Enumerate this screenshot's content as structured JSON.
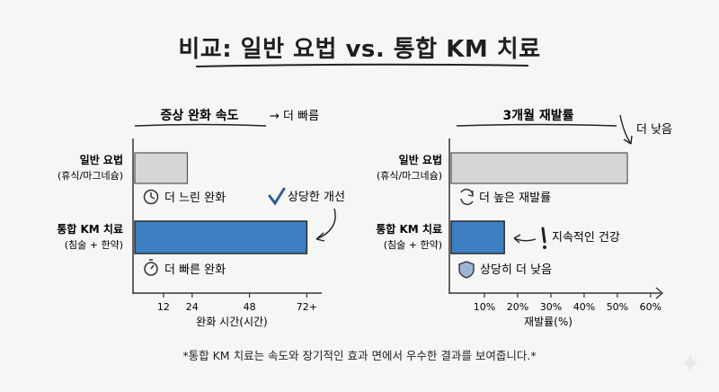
{
  "title": "비교: 일반 요법 vs. 통합 KM 치료",
  "footnote": "*통합 KM 치료는 속도와 장기적인 효과 면에서 우수한 결과를 보여줍니다.*",
  "chart_data": [
    {
      "type": "bar",
      "orientation": "horizontal",
      "title": "증상 완화 속도",
      "title_note": "→ 더 빠름",
      "categories": [
        [
          "일반 요법",
          "(휴식/마그네슘)"
        ],
        [
          "통합 KM 치료",
          "(침술 + 한약)"
        ]
      ],
      "values": [
        22,
        72
      ],
      "xlabel": "완화 시간(시간)",
      "ylabel": "",
      "xticks": [
        "12",
        "24",
        "48",
        "72+"
      ],
      "tick_values": [
        12,
        24,
        48,
        72
      ],
      "xlim": [
        0,
        76
      ],
      "annotations": [
        "더 느린 완화",
        "더 빠른 완화",
        "상당한 개선"
      ],
      "colors": [
        "#d6d6d4",
        "#3d7fc1"
      ]
    },
    {
      "type": "bar",
      "orientation": "horizontal",
      "title": "3개월 재발률",
      "title_note": "더 낮음",
      "categories": [
        [
          "일반 요법",
          "(휴식/마그네슘)"
        ],
        [
          "통합 KM 치료",
          "(침술 + 한약)"
        ]
      ],
      "values": [
        53,
        16
      ],
      "xlabel": "재발률(%)",
      "ylabel": "",
      "xticks": [
        "10%",
        "20%",
        "30%",
        "40%",
        "50%",
        "60%"
      ],
      "tick_values": [
        10,
        20,
        30,
        40,
        50,
        60
      ],
      "xlim": [
        0,
        63
      ],
      "annotations": [
        "더 높은 재발률",
        "지속적인 건강",
        "상당히 더 낮음"
      ],
      "colors": [
        "#d6d6d4",
        "#3d7fc1"
      ]
    }
  ]
}
